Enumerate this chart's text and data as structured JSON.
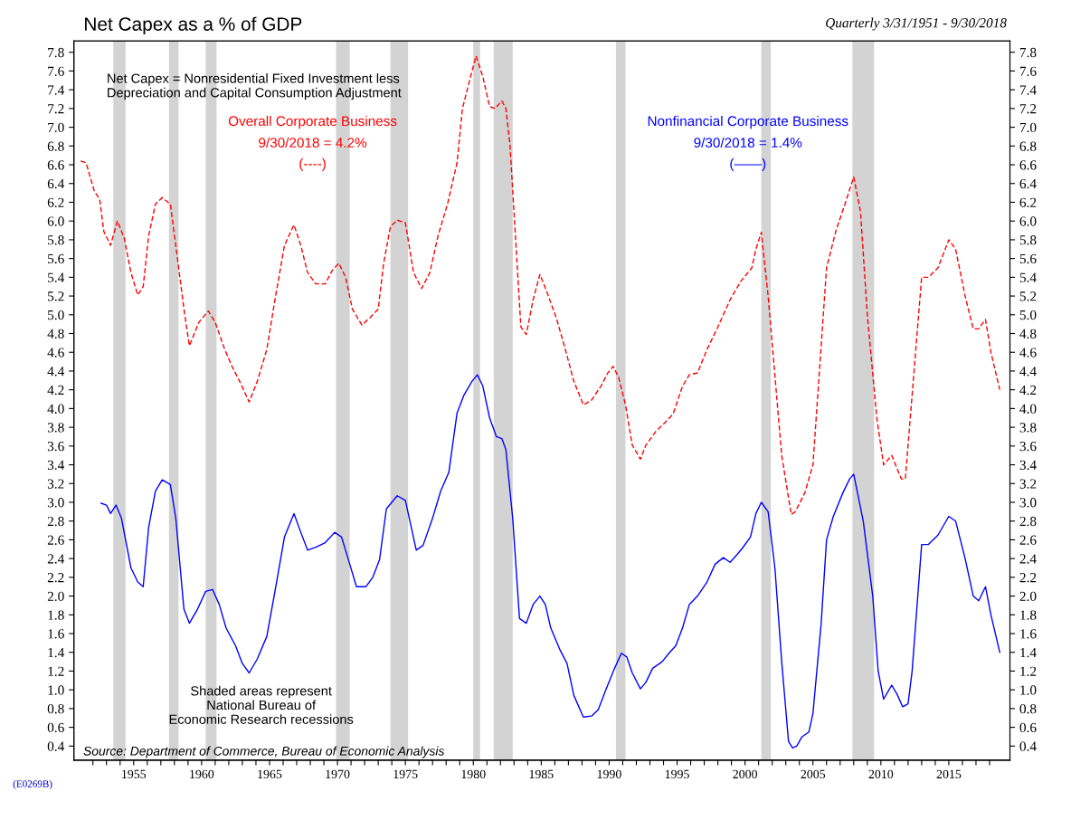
{
  "chart_data": {
    "type": "line",
    "title": "Net Capex as a % of GDP",
    "subtitle": "Quarterly 3/31/1951 - 9/30/2018",
    "annotations": [
      "Net Capex = Nonresidential Fixed Investment less\nDepreciation and Capital Consumption Adjustment",
      "9/30/2018 = 4.2%",
      "(----)",
      "9/30/2018 = 1.4%",
      "(——)",
      "Shaded areas represent\nNational Bureau of\nEconomic Research recessions",
      "Source: Department of Commerce, Bureau of Economic Analysis",
      "(E0269B)"
    ],
    "series": [
      {
        "name": "Overall Corporate Business",
        "color": "#ff0000",
        "line_style": "dashed",
        "x": [
          1951.1,
          1951.5,
          1952.1,
          1952.5,
          1952.8,
          1953.3,
          1953.8,
          1954.3,
          1954.8,
          1955.3,
          1955.7,
          1956.1,
          1956.6,
          1957.1,
          1957.7,
          1958.1,
          1958.7,
          1959.1,
          1959.8,
          1960.5,
          1961.0,
          1961.7,
          1962.3,
          1962.8,
          1963.5,
          1964.1,
          1964.8,
          1965.4,
          1966.1,
          1966.8,
          1967.3,
          1967.8,
          1968.4,
          1969.1,
          1969.6,
          1970.1,
          1970.6,
          1971.1,
          1971.8,
          1972.4,
          1973.0,
          1973.4,
          1973.9,
          1974.4,
          1975.0,
          1975.6,
          1976.2,
          1976.8,
          1977.4,
          1978.1,
          1978.8,
          1979.2,
          1979.8,
          1980.2,
          1980.7,
          1981.2,
          1981.6,
          1982.1,
          1982.4,
          1982.7,
          1983.1,
          1983.5,
          1983.9,
          1984.4,
          1984.9,
          1985.4,
          1986.1,
          1986.7,
          1987.4,
          1988.1,
          1988.7,
          1989.4,
          1989.9,
          1990.3,
          1990.7,
          1991.2,
          1991.7,
          1992.3,
          1992.7,
          1993.4,
          1994.1,
          1994.7,
          1995.4,
          1995.9,
          1996.5,
          1997.2,
          1998.0,
          1998.9,
          1999.7,
          2000.5,
          2000.8,
          2001.2,
          2001.7,
          2002.7,
          2003.4,
          2003.7,
          2004.4,
          2005.0,
          2006.0,
          2006.7,
          2007.4,
          2008.0,
          2008.5,
          2009.0,
          2009.7,
          2010.2,
          2010.8,
          2011.5,
          2011.8,
          2013.0,
          2013.5,
          2014.2,
          2015.0,
          2015.5,
          2016.2,
          2016.8,
          2017.2,
          2017.7,
          2018.1,
          2018.75
        ],
        "values": [
          6.64,
          6.62,
          6.32,
          6.23,
          5.89,
          5.74,
          6.0,
          5.82,
          5.45,
          5.21,
          5.3,
          5.84,
          6.18,
          6.25,
          6.18,
          5.74,
          5.06,
          4.67,
          4.92,
          5.04,
          4.92,
          4.63,
          4.43,
          4.29,
          4.07,
          4.29,
          4.63,
          5.16,
          5.74,
          5.96,
          5.74,
          5.45,
          5.33,
          5.33,
          5.47,
          5.55,
          5.4,
          5.06,
          4.89,
          4.97,
          5.06,
          5.55,
          5.94,
          6.01,
          5.98,
          5.45,
          5.28,
          5.45,
          5.84,
          6.18,
          6.62,
          7.2,
          7.54,
          7.76,
          7.54,
          7.22,
          7.2,
          7.28,
          7.2,
          6.81,
          5.84,
          4.87,
          4.79,
          5.16,
          5.43,
          5.25,
          4.97,
          4.67,
          4.29,
          4.04,
          4.09,
          4.24,
          4.38,
          4.45,
          4.33,
          4.04,
          3.61,
          3.46,
          3.61,
          3.75,
          3.85,
          3.94,
          4.24,
          4.36,
          4.38,
          4.63,
          4.87,
          5.16,
          5.36,
          5.5,
          5.7,
          5.88,
          5.2,
          3.5,
          2.87,
          2.9,
          3.1,
          3.4,
          5.5,
          5.9,
          6.2,
          6.47,
          6.1,
          5.0,
          3.9,
          3.4,
          3.5,
          3.25,
          3.25,
          5.4,
          5.4,
          5.5,
          5.8,
          5.7,
          5.2,
          4.85,
          4.85,
          4.95,
          4.6,
          4.2
        ]
      },
      {
        "name": "Nonfinancial Corporate Business",
        "color": "#0000ff",
        "line_style": "solid",
        "x": [
          1952.6,
          1953.0,
          1953.3,
          1953.7,
          1954.1,
          1954.8,
          1955.3,
          1955.7,
          1956.1,
          1956.6,
          1957.1,
          1957.7,
          1958.1,
          1958.7,
          1959.1,
          1959.7,
          1960.3,
          1960.8,
          1961.3,
          1961.8,
          1962.5,
          1963.0,
          1963.5,
          1964.1,
          1964.8,
          1965.4,
          1966.1,
          1966.8,
          1967.3,
          1967.8,
          1968.4,
          1969.1,
          1969.8,
          1970.3,
          1970.8,
          1971.4,
          1972.1,
          1972.6,
          1973.1,
          1973.6,
          1974.4,
          1975.0,
          1975.8,
          1976.3,
          1977.0,
          1977.6,
          1978.2,
          1978.8,
          1979.3,
          1979.9,
          1980.3,
          1980.7,
          1981.2,
          1981.7,
          1982.1,
          1982.4,
          1982.9,
          1983.4,
          1983.9,
          1984.4,
          1984.9,
          1985.3,
          1985.7,
          1986.4,
          1986.9,
          1987.4,
          1988.1,
          1988.7,
          1989.2,
          1989.7,
          1990.4,
          1990.9,
          1991.3,
          1991.7,
          1992.3,
          1992.7,
          1993.2,
          1993.9,
          1994.4,
          1994.9,
          1995.4,
          1995.9,
          1996.5,
          1997.2,
          1997.8,
          1998.4,
          1998.9,
          1999.4,
          1999.8,
          2000.4,
          2000.8,
          2001.2,
          2001.7,
          2002.2,
          2002.7,
          2003.2,
          2003.5,
          2003.8,
          2004.2,
          2004.7,
          2005.0,
          2005.6,
          2006.0,
          2006.5,
          2007.2,
          2007.7,
          2008.0,
          2008.7,
          2009.4,
          2009.8,
          2010.2,
          2010.8,
          2011.2,
          2011.6,
          2012.0,
          2012.3,
          2013.0,
          2013.5,
          2014.2,
          2015.0,
          2015.5,
          2016.2,
          2016.8,
          2017.2,
          2017.7,
          2018.1,
          2018.75
        ],
        "values": [
          2.99,
          2.97,
          2.88,
          2.97,
          2.83,
          2.3,
          2.15,
          2.1,
          2.73,
          3.12,
          3.24,
          3.19,
          2.83,
          1.86,
          1.71,
          1.86,
          2.05,
          2.07,
          1.91,
          1.66,
          1.47,
          1.28,
          1.18,
          1.33,
          1.57,
          2.05,
          2.63,
          2.88,
          2.68,
          2.49,
          2.52,
          2.57,
          2.68,
          2.63,
          2.39,
          2.1,
          2.1,
          2.2,
          2.39,
          2.93,
          3.07,
          3.02,
          2.49,
          2.54,
          2.83,
          3.12,
          3.32,
          3.95,
          4.14,
          4.29,
          4.36,
          4.24,
          3.9,
          3.7,
          3.68,
          3.56,
          2.83,
          1.76,
          1.71,
          1.91,
          2.0,
          1.91,
          1.66,
          1.42,
          1.28,
          0.94,
          0.71,
          0.72,
          0.79,
          0.98,
          1.23,
          1.39,
          1.35,
          1.18,
          1.01,
          1.08,
          1.23,
          1.3,
          1.39,
          1.47,
          1.66,
          1.91,
          2.0,
          2.15,
          2.34,
          2.41,
          2.36,
          2.44,
          2.51,
          2.63,
          2.88,
          3.0,
          2.9,
          2.3,
          1.3,
          0.45,
          0.38,
          0.4,
          0.5,
          0.55,
          0.75,
          1.7,
          2.6,
          2.85,
          3.1,
          3.25,
          3.3,
          2.8,
          2.0,
          1.2,
          0.9,
          1.05,
          0.95,
          0.82,
          0.85,
          1.2,
          2.55,
          2.55,
          2.65,
          2.85,
          2.8,
          2.4,
          2.0,
          1.95,
          2.1,
          1.8,
          1.4
        ]
      }
    ],
    "bands": [
      {
        "axis": "x",
        "from": 1953.5,
        "to": 1954.4,
        "color": "#d3d3d3"
      },
      {
        "axis": "x",
        "from": 1957.6,
        "to": 1958.3,
        "color": "#d3d3d3"
      },
      {
        "axis": "x",
        "from": 1960.3,
        "to": 1961.1,
        "color": "#d3d3d3"
      },
      {
        "axis": "x",
        "from": 1969.9,
        "to": 1970.9,
        "color": "#d3d3d3"
      },
      {
        "axis": "x",
        "from": 1973.9,
        "to": 1975.2,
        "color": "#d3d3d3"
      },
      {
        "axis": "x",
        "from": 1980.0,
        "to": 1980.5,
        "color": "#d3d3d3"
      },
      {
        "axis": "x",
        "from": 1981.5,
        "to": 1982.9,
        "color": "#d3d3d3"
      },
      {
        "axis": "x",
        "from": 1990.5,
        "to": 1991.2,
        "color": "#d3d3d3"
      },
      {
        "axis": "x",
        "from": 2001.2,
        "to": 2001.9,
        "color": "#d3d3d3"
      },
      {
        "axis": "x",
        "from": 2007.9,
        "to": 2009.5,
        "color": "#d3d3d3"
      }
    ],
    "xlim": [
      1950.6,
      2019.5
    ],
    "xticks": [
      {
        "value": 1952,
        "label": null
      },
      {
        "value": 1953,
        "label": null
      },
      {
        "value": 1954,
        "label": null
      },
      1955,
      {
        "value": 1956,
        "label": null
      },
      {
        "value": 1957,
        "label": null
      },
      {
        "value": 1958,
        "label": null
      },
      {
        "value": 1959,
        "label": null
      },
      1960,
      {
        "value": 1961,
        "label": null
      },
      {
        "value": 1962,
        "label": null
      },
      {
        "value": 1963,
        "label": null
      },
      {
        "value": 1964,
        "label": null
      },
      1965,
      {
        "value": 1966,
        "label": null
      },
      {
        "value": 1967,
        "label": null
      },
      {
        "value": 1968,
        "label": null
      },
      {
        "value": 1969,
        "label": null
      },
      1970,
      {
        "value": 1971,
        "label": null
      },
      {
        "value": 1972,
        "label": null
      },
      {
        "value": 1973,
        "label": null
      },
      {
        "value": 1974,
        "label": null
      },
      1975,
      {
        "value": 1976,
        "label": null
      },
      {
        "value": 1977,
        "label": null
      },
      {
        "value": 1978,
        "label": null
      },
      {
        "value": 1979,
        "label": null
      },
      1980,
      {
        "value": 1981,
        "label": null
      },
      {
        "value": 1982,
        "label": null
      },
      {
        "value": 1983,
        "label": null
      },
      {
        "value": 1984,
        "label": null
      },
      1985,
      {
        "value": 1986,
        "label": null
      },
      {
        "value": 1987,
        "label": null
      },
      {
        "value": 1988,
        "label": null
      },
      {
        "value": 1989,
        "label": null
      },
      1990,
      {
        "value": 1991,
        "label": null
      },
      {
        "value": 1992,
        "label": null
      },
      {
        "value": 1993,
        "label": null
      },
      {
        "value": 1994,
        "label": null
      },
      1995,
      {
        "value": 1996,
        "label": null
      },
      {
        "value": 1997,
        "label": null
      },
      {
        "value": 1998,
        "label": null
      },
      {
        "value": 1999,
        "label": null
      },
      2000,
      {
        "value": 2001,
        "label": null
      },
      {
        "value": 2002,
        "label": null
      },
      {
        "value": 2003,
        "label": null
      },
      {
        "value": 2004,
        "label": null
      },
      2005,
      {
        "value": 2006,
        "label": null
      },
      {
        "value": 2007,
        "label": null
      },
      {
        "value": 2008,
        "label": null
      },
      {
        "value": 2009,
        "label": null
      },
      2010,
      {
        "value": 2011,
        "label": null
      },
      {
        "value": 2012,
        "label": null
      },
      {
        "value": 2013,
        "label": null
      },
      {
        "value": 2014,
        "label": null
      },
      2015,
      {
        "value": 2016,
        "label": null
      },
      {
        "value": 2017,
        "label": null
      },
      {
        "value": 2018,
        "label": null
      }
    ],
    "ylim": [
      0.25,
      7.92
    ],
    "yticks": [
      0.4,
      0.6,
      0.8,
      {
        "value": 1,
        "label": "1.0"
      },
      1.2,
      1.4,
      1.6,
      1.8,
      {
        "value": 2,
        "label": "2.0"
      },
      2.2,
      2.4,
      2.6,
      2.8,
      {
        "value": 3,
        "label": "3.0"
      },
      3.2,
      3.4,
      3.6,
      3.8,
      {
        "value": 4,
        "label": "4.0"
      },
      4.2,
      4.4,
      4.6,
      4.8,
      {
        "value": 5,
        "label": "5.0"
      },
      5.2,
      5.4,
      5.6,
      5.8,
      {
        "value": 6,
        "label": "6.0"
      },
      6.2,
      6.4,
      6.6,
      6.8,
      {
        "value": 7,
        "label": "7.0"
      },
      7.2,
      7.4,
      7.6,
      7.8
    ],
    "y2lim": [
      0.25,
      7.92
    ],
    "y2ticks": [
      0.4,
      0.6,
      0.8,
      {
        "value": 1,
        "label": "1.0"
      },
      1.2,
      1.4,
      1.6,
      1.8,
      {
        "value": 2,
        "label": "2.0"
      },
      2.2,
      2.4,
      2.6,
      2.8,
      {
        "value": 3,
        "label": "3.0"
      },
      3.2,
      3.4,
      3.6,
      3.8,
      {
        "value": 4,
        "label": "4.0"
      },
      4.2,
      4.4,
      4.6,
      4.8,
      {
        "value": 5,
        "label": "5.0"
      },
      5.2,
      5.4,
      5.6,
      5.8,
      {
        "value": 6,
        "label": "6.0"
      },
      6.2,
      6.4,
      6.6,
      6.8,
      {
        "value": 7,
        "label": "7.0"
      },
      7.2,
      7.4,
      7.6,
      7.8
    ],
    "grid": false,
    "legend": false
  }
}
